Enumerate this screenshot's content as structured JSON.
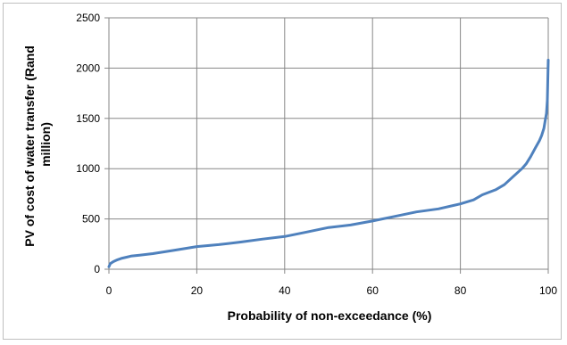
{
  "chart_data": {
    "type": "line",
    "title": "",
    "xlabel": "Probability of non-exceedance (%)",
    "ylabel_lines": [
      "PV of cost of water transfer (Rand",
      "million)"
    ],
    "xlim": [
      0,
      100
    ],
    "ylim": [
      0,
      2500
    ],
    "x_ticks": [
      0,
      20,
      40,
      60,
      80,
      100
    ],
    "y_ticks": [
      0,
      500,
      1000,
      1500,
      2000,
      2500
    ],
    "grid": true,
    "legend": "none",
    "line_color": "#4f81bd",
    "series": [
      {
        "x": [
          0,
          0.3,
          1,
          2,
          3,
          4,
          5,
          7,
          10,
          15,
          20,
          25,
          30,
          35,
          40,
          45,
          50,
          55,
          60,
          65,
          70,
          75,
          80,
          83,
          85,
          88,
          90,
          92,
          94,
          95,
          96,
          97,
          98,
          98.5,
          99,
          99.3,
          99.6,
          99.8,
          100
        ],
        "y": [
          25,
          55,
          75,
          95,
          110,
          120,
          130,
          140,
          155,
          190,
          225,
          245,
          270,
          300,
          325,
          370,
          415,
          440,
          480,
          525,
          570,
          600,
          650,
          690,
          740,
          790,
          840,
          920,
          1000,
          1050,
          1120,
          1200,
          1280,
          1330,
          1400,
          1480,
          1550,
          1680,
          2080
        ]
      }
    ]
  }
}
